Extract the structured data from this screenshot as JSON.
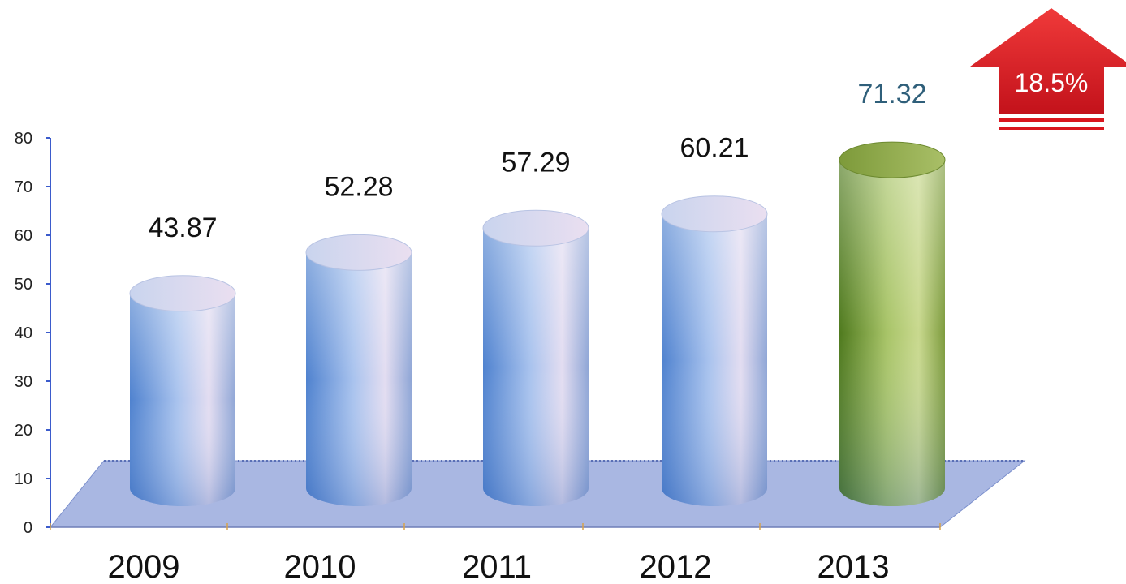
{
  "chart_data": {
    "type": "bar",
    "style": "3d-cylinder",
    "categories": [
      "2009",
      "2010",
      "2011",
      "2012",
      "2013"
    ],
    "values": [
      43.87,
      52.28,
      57.29,
      60.21,
      71.32
    ],
    "data_labels": [
      "43.87",
      "52.28",
      "57.29",
      "60.21",
      "71.32"
    ],
    "highlight_index": 4,
    "yticks": [
      "0",
      "10",
      "20",
      "30",
      "40",
      "50",
      "60",
      "70",
      "80"
    ],
    "ylim": [
      0,
      80
    ],
    "grid": false,
    "legend": "none",
    "annotation": {
      "text": "18.5%",
      "shape": "up-arrow",
      "placement": "top-right"
    },
    "colors": {
      "bar": "#a9c3ee",
      "bar_dark": "#4f82cf",
      "bar_highlight": "#8fb04a",
      "bar_highlight_dark": "#4f7a1e",
      "floor": "#9aaadd",
      "axis": "#3b5bcc",
      "arrow": "#d9161e",
      "label_highlight": "#2f5f7a"
    }
  }
}
